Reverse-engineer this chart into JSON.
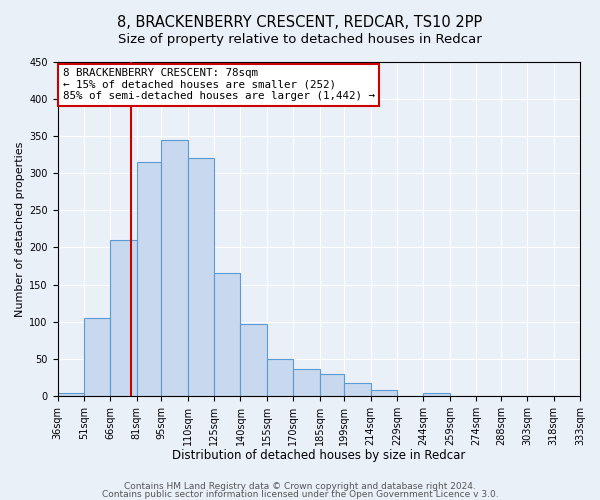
{
  "title": "8, BRACKENBERRY CRESCENT, REDCAR, TS10 2PP",
  "subtitle": "Size of property relative to detached houses in Redcar",
  "xlabel": "Distribution of detached houses by size in Redcar",
  "ylabel": "Number of detached properties",
  "bin_edges": [
    36,
    51,
    66,
    81,
    95,
    110,
    125,
    140,
    155,
    170,
    185,
    199,
    214,
    229,
    244,
    259,
    274,
    288,
    303,
    318,
    333
  ],
  "bin_heights": [
    5,
    105,
    210,
    315,
    345,
    320,
    165,
    97,
    50,
    37,
    30,
    18,
    8,
    0,
    5,
    0,
    0,
    0,
    0,
    0
  ],
  "bar_color": "#c8d8ee",
  "bar_edge_color": "#5b9bd5",
  "vline_x": 78,
  "vline_color": "#cc0000",
  "annotation_text": "8 BRACKENBERRY CRESCENT: 78sqm\n← 15% of detached houses are smaller (252)\n85% of semi-detached houses are larger (1,442) →",
  "annotation_box_color": "#ffffff",
  "annotation_box_edge": "#cc0000",
  "ylim": [
    0,
    450
  ],
  "tick_labels": [
    "36sqm",
    "51sqm",
    "66sqm",
    "81sqm",
    "95sqm",
    "110sqm",
    "125sqm",
    "140sqm",
    "155sqm",
    "170sqm",
    "185sqm",
    "199sqm",
    "214sqm",
    "229sqm",
    "244sqm",
    "259sqm",
    "274sqm",
    "288sqm",
    "303sqm",
    "318sqm",
    "333sqm"
  ],
  "footer1": "Contains HM Land Registry data © Crown copyright and database right 2024.",
  "footer2": "Contains public sector information licensed under the Open Government Licence v 3.0.",
  "background_color": "#eaf0f8",
  "plot_bg_color": "#eaf0f8",
  "title_fontsize": 10.5,
  "subtitle_fontsize": 9.5,
  "xlabel_fontsize": 8.5,
  "ylabel_fontsize": 8,
  "tick_fontsize": 7,
  "footer_fontsize": 6.5,
  "annotation_fontsize": 7.8
}
